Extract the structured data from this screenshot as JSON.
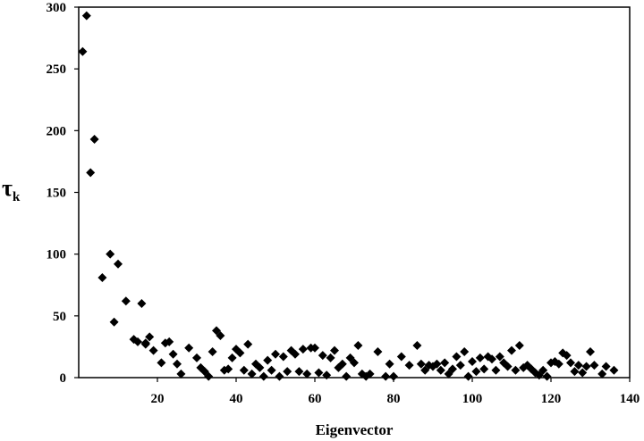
{
  "chart_data": {
    "type": "scatter",
    "title": "",
    "xlabel": "Eigenvector",
    "ylabel": "τ",
    "ylabel_sub": "k",
    "xlim": [
      0,
      140
    ],
    "ylim": [
      0,
      300
    ],
    "xticks": [
      20,
      40,
      60,
      80,
      100,
      120,
      140
    ],
    "yticks": [
      0,
      50,
      100,
      150,
      200,
      250,
      300
    ],
    "grid": false,
    "legend": "none",
    "marker": "diamond",
    "marker_color": "#000000",
    "series": [
      {
        "x": [
          1,
          2,
          3,
          4,
          6,
          8,
          9,
          10,
          12,
          14,
          15,
          16,
          17,
          17,
          18,
          19,
          21,
          22,
          23,
          24,
          25,
          26,
          28,
          30,
          31,
          32,
          33,
          34,
          35,
          36,
          37,
          38,
          39,
          40,
          41,
          42,
          43,
          44,
          45,
          46,
          47,
          48,
          49,
          50,
          51,
          52,
          53,
          54,
          55,
          56,
          57,
          58,
          59,
          60,
          61,
          62,
          63,
          64,
          65,
          66,
          67,
          68,
          69,
          70,
          71,
          72,
          73,
          74,
          76,
          78,
          79,
          80,
          82,
          84,
          86,
          87,
          88,
          89,
          90,
          91,
          92,
          93,
          94,
          95,
          96,
          97,
          98,
          99,
          100,
          101,
          102,
          103,
          104,
          105,
          106,
          107,
          108,
          109,
          110,
          111,
          112,
          113,
          114,
          115,
          116,
          117,
          118,
          119,
          120,
          121,
          122,
          123,
          124,
          125,
          126,
          127,
          128,
          129,
          130,
          131,
          133,
          134,
          136
        ],
        "y": [
          264,
          293,
          166,
          193,
          81,
          100,
          45,
          92,
          62,
          31,
          29,
          60,
          27,
          28,
          33,
          22,
          12,
          28,
          29,
          19,
          11,
          3,
          24,
          16,
          8,
          5,
          1,
          21,
          38,
          34,
          6,
          7,
          16,
          23,
          20,
          6,
          27,
          3,
          11,
          8,
          1,
          14,
          6,
          19,
          1,
          17,
          5,
          22,
          19,
          5,
          23,
          3,
          24,
          24,
          4,
          18,
          2,
          16,
          22,
          8,
          11,
          1,
          16,
          12,
          26,
          3,
          1,
          3,
          21,
          1,
          11,
          1,
          17,
          10,
          26,
          11,
          6,
          10,
          9,
          11,
          6,
          12,
          3,
          7,
          17,
          10,
          21,
          1,
          13,
          5,
          16,
          7,
          17,
          15,
          6,
          17,
          12,
          9,
          22,
          6,
          26,
          8,
          10,
          7,
          4,
          2,
          6,
          1,
          12,
          13,
          11,
          20,
          18,
          12,
          5,
          10,
          4,
          9,
          21,
          10,
          3,
          9,
          6
        ]
      }
    ]
  }
}
